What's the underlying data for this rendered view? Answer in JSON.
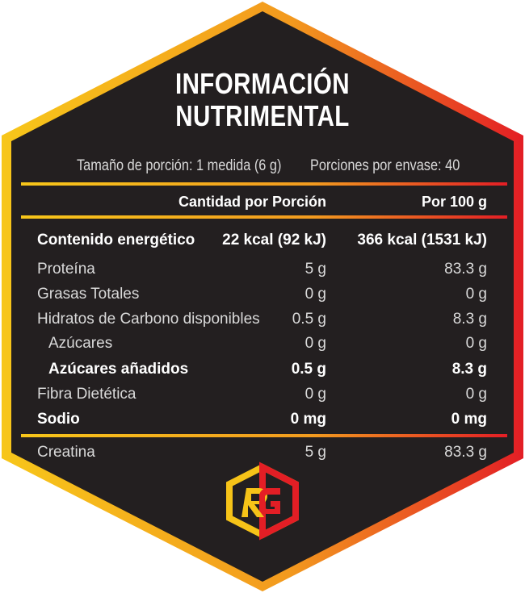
{
  "title": {
    "line1": "INFORMACIÓN",
    "line2": "NUTRIMENTAL"
  },
  "serving": {
    "size": "Tamaño de porción:  1 medida (6 g)",
    "per_container": "Porciones por envase: 40"
  },
  "headers": {
    "per_serving": "Cantidad por Porción",
    "per_100g": "Por 100 g"
  },
  "rows": [
    {
      "label": "Contenido energético",
      "per_serving": "22 kcal  (92 kJ)",
      "per_100g": "366 kcal  (1531 kJ)",
      "bold": true,
      "indent": false
    },
    {
      "label": "Proteína",
      "per_serving": "5 g",
      "per_100g": "83.3 g",
      "bold": false,
      "indent": false
    },
    {
      "label": "Grasas Totales",
      "per_serving": "0 g",
      "per_100g": "0 g",
      "bold": false,
      "indent": false
    },
    {
      "label": "Hidratos de Carbono disponibles",
      "per_serving": "0.5 g",
      "per_100g": "8.3 g",
      "bold": false,
      "indent": false
    },
    {
      "label": "Azúcares",
      "per_serving": "0 g",
      "per_100g": "0 g",
      "bold": false,
      "indent": true
    },
    {
      "label": "Azúcares añadidos",
      "per_serving": "0.5 g",
      "per_100g": "8.3 g",
      "bold": true,
      "indent": true
    },
    {
      "label": "Fibra Dietética",
      "per_serving": "0 g",
      "per_100g": "0 g",
      "bold": false,
      "indent": false
    },
    {
      "label": "Sodio",
      "per_serving": "0 mg",
      "per_100g": "0 mg",
      "bold": true,
      "indent": false
    }
  ],
  "extra": {
    "label": "Creatina",
    "per_serving": "5 g",
    "per_100g": "83.3 g"
  },
  "logo": {
    "icon": "rg-hexagon-logo-icon",
    "text": "RG"
  },
  "colors": {
    "background": "#231f20",
    "gradient_start": "#f7c61a",
    "gradient_end": "#e31e25"
  }
}
